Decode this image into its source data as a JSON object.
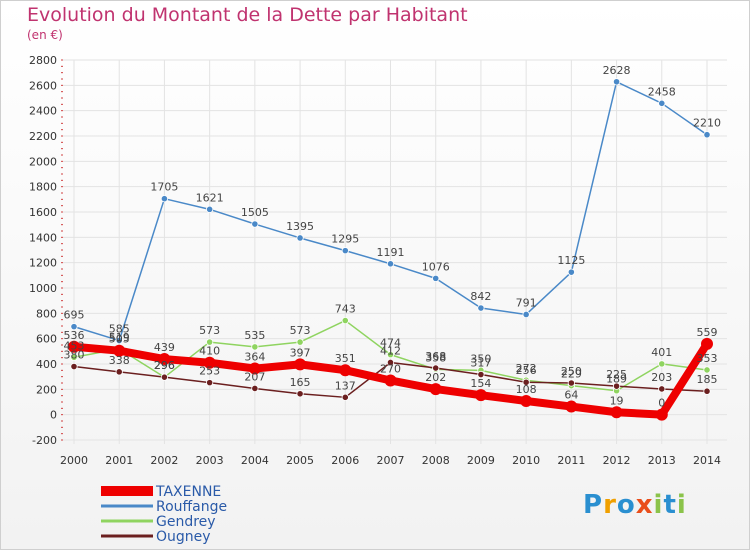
{
  "header": {
    "title": "Evolution du Montant de la Dette par Habitant",
    "unit": "(en €)"
  },
  "logo": {
    "text": "Proxiti",
    "colors": [
      "#2a8fd0",
      "#f0a000",
      "#2a8fd0",
      "#e94e1b",
      "#8bc34a",
      "#2a8fd0",
      "#8bc34a"
    ]
  },
  "chart_data": {
    "type": "line",
    "title": "Evolution du Montant de la Dette par Habitant",
    "ylabel": "(en €)",
    "x": [
      "2000",
      "2001",
      "2002",
      "2003",
      "2004",
      "2005",
      "2006",
      "2007",
      "2008",
      "2009",
      "2010",
      "2011",
      "2012",
      "2013",
      "2014"
    ],
    "ylim": [
      -200,
      2800
    ],
    "yticks": [
      -200,
      0,
      200,
      400,
      600,
      800,
      1000,
      1200,
      1400,
      1600,
      1800,
      2000,
      2200,
      2400,
      2600,
      2800
    ],
    "grid": true,
    "legend": "bottom-left",
    "series": [
      {
        "name": "TAXENNE",
        "color": "#ee0000",
        "values": [
          536,
          505,
          439,
          410,
          364,
          397,
          351,
          270,
          202,
          154,
          108,
          64,
          19,
          0,
          559
        ]
      },
      {
        "name": "Rouffange",
        "color": "#4a89c8",
        "values": [
          695,
          585,
          1705,
          1621,
          1505,
          1395,
          1295,
          1191,
          1076,
          842,
          791,
          1125,
          2628,
          2458,
          2210
        ]
      },
      {
        "name": "Gendrey",
        "color": "#8fd460",
        "values": [
          453,
          519,
          296,
          573,
          535,
          573,
          743,
          474,
          358,
          350,
          272,
          229,
          189,
          401,
          353
        ]
      },
      {
        "name": "Ougney",
        "color": "#6b1f1f",
        "values": [
          380,
          338,
          296,
          253,
          207,
          165,
          137,
          412,
          368,
          317,
          256,
          250,
          225,
          203,
          185
        ]
      }
    ]
  }
}
